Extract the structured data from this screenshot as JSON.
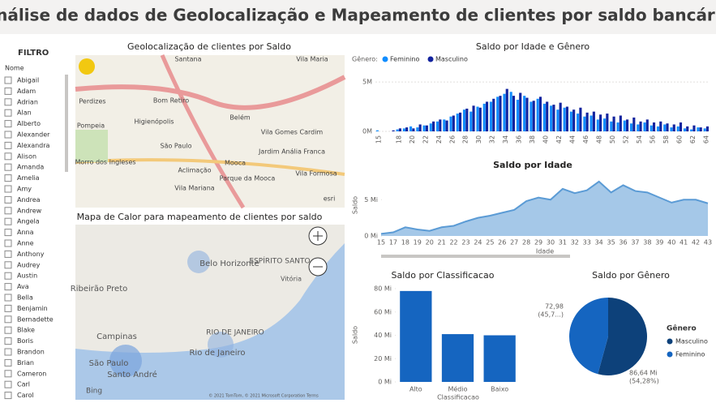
{
  "header": {
    "title": "Análise de dados de Geolocalização e Mapeamento de clientes por saldo bancário"
  },
  "filter": {
    "title": "FILTRO",
    "field": "Nome",
    "items": [
      "Abigail",
      "Adam",
      "Adrian",
      "Alan",
      "Alberto",
      "Alexander",
      "Alexandra",
      "Alison",
      "Amanda",
      "Amelia",
      "Amy",
      "Andrea",
      "Andrew",
      "Angela",
      "Anna",
      "Anne",
      "Anthony",
      "Audrey",
      "Austin",
      "Ava",
      "Bella",
      "Benjamin",
      "Bernadette",
      "Blake",
      "Boris",
      "Brandon",
      "Brian",
      "Cameron",
      "Carl",
      "Carol"
    ]
  },
  "map_geo": {
    "title": "Geolocalização de clientes por Saldo",
    "labels": [
      "Santana",
      "Vila Maria",
      "Bom Retiro",
      "Belém",
      "Perdizes",
      "Higienópolis",
      "Pompeia",
      "São Paulo",
      "Mooca",
      "Vila Gomes Cardim",
      "Jardim Anália Franca",
      "Morro dos Ingleses",
      "Aclimação",
      "Parque da Mooca",
      "Vila Formosa",
      "Vila Mariana",
      "esri"
    ]
  },
  "map_heat": {
    "title": "Mapa de Calor para mapeamento de clientes por saldo",
    "labels": [
      "Belo Horizonte",
      "ESPÍRITO SANTO",
      "Vitória",
      "Ribeirão Preto",
      "Campinas",
      "RIO DE JANEIRO",
      "Rio de Janeiro",
      "São Paulo",
      "Santo André",
      "Bing",
      "© 2021 TomTom, © 2021 Microsoft Corporation Terms"
    ]
  },
  "chart_data": [
    {
      "type": "grouped-bar",
      "title": "Saldo por Idade e Gênero",
      "legend_title": "Gênero:",
      "categories": [
        "15",
        null,
        null,
        "18",
        null,
        "20",
        null,
        "22",
        null,
        "24",
        null,
        "26",
        null,
        "28",
        null,
        "30",
        null,
        "32",
        null,
        "34",
        null,
        "36",
        null,
        "38",
        null,
        "40",
        null,
        "42",
        null,
        "44",
        null,
        "46",
        null,
        "48",
        null,
        "50",
        null,
        "52",
        null,
        "54",
        null,
        "56",
        null,
        "58",
        null,
        "60",
        null,
        "62",
        null,
        "64"
      ],
      "series": [
        {
          "name": "Feminino",
          "color": "#118dff",
          "values": [
            0.1,
            0,
            0,
            0.2,
            0.3,
            0.5,
            0.4,
            0.6,
            0.8,
            1.0,
            1.2,
            1.5,
            1.8,
            2.2,
            2.0,
            2.5,
            2.8,
            3.0,
            3.5,
            3.8,
            4.0,
            3.2,
            3.6,
            3.0,
            3.3,
            2.8,
            2.6,
            2.2,
            2.4,
            2.0,
            1.8,
            1.5,
            1.6,
            1.2,
            1.3,
            1.0,
            0.9,
            1.1,
            0.8,
            0.7,
            0.9,
            0.6,
            0.5,
            0.7,
            0.4,
            0.5,
            0.3,
            0.2,
            0.4,
            0.3
          ]
        },
        {
          "name": "Masculino",
          "color": "#12239e",
          "values": [
            0,
            0,
            0.1,
            0.3,
            0.4,
            0.3,
            0.7,
            0.6,
            1.0,
            1.2,
            1.1,
            1.6,
            1.9,
            2.3,
            2.6,
            2.4,
            3.0,
            3.3,
            3.6,
            4.3,
            3.6,
            3.9,
            3.4,
            3.1,
            3.5,
            3.0,
            2.7,
            2.9,
            2.5,
            2.2,
            2.4,
            1.9,
            2.0,
            1.7,
            1.8,
            1.5,
            1.6,
            1.2,
            1.4,
            1.0,
            1.2,
            0.9,
            1.0,
            0.8,
            0.7,
            0.9,
            0.5,
            0.6,
            0.4,
            0.5
          ]
        }
      ],
      "ylim": [
        0,
        5.5
      ],
      "yticks": [
        {
          "value": 0,
          "label": "0M"
        },
        {
          "value": 5,
          "label": "5M"
        }
      ]
    },
    {
      "type": "area",
      "title": "Saldo por Idade",
      "x_label": "Idade",
      "y_label": "Saldo",
      "color": "#5b9bd5",
      "categories": [
        "15",
        "17",
        "18",
        "19",
        "20",
        "21",
        "22",
        "23",
        "24",
        "25",
        "26",
        "27",
        "28",
        "29",
        "30",
        "31",
        "32",
        "33",
        "34",
        "35",
        "36",
        "37",
        "38",
        "39",
        "40",
        "41",
        "42",
        "43"
      ],
      "values": [
        0.3,
        0.5,
        1.2,
        0.9,
        0.7,
        1.2,
        1.4,
        2.0,
        2.5,
        2.8,
        3.2,
        3.6,
        4.8,
        5.3,
        5.0,
        6.5,
        5.9,
        6.3,
        7.5,
        6.0,
        7.0,
        6.2,
        6.0,
        5.3,
        4.6,
        5.0,
        5.0,
        4.5
      ],
      "ylim": [
        0,
        8.5
      ],
      "yticks": [
        {
          "value": 0,
          "label": "0 Mi"
        },
        {
          "value": 5,
          "label": "5 Mi"
        }
      ]
    },
    {
      "type": "bar",
      "title": "Saldo por Classificacao",
      "x_label": "Classificacao",
      "y_label": "Saldo",
      "color": "#1565c0",
      "categories": [
        "Alto",
        "Médio",
        "Baixo"
      ],
      "values": [
        78,
        41,
        40
      ],
      "ylim": [
        0,
        80
      ],
      "yticks": [
        {
          "value": 0,
          "label": "0 Mi"
        },
        {
          "value": 20,
          "label": "20 Mi"
        },
        {
          "value": 40,
          "label": "40 Mi"
        },
        {
          "value": 60,
          "label": "60 Mi"
        },
        {
          "value": 80,
          "label": "80 Mi"
        }
      ]
    },
    {
      "type": "pie",
      "title": "Saldo por Gênero",
      "legend_title": "Gênero",
      "categories": [
        "Masculino",
        "Feminino"
      ],
      "values": [
        86.64,
        72.98
      ],
      "colors": [
        "#0d417a",
        "#1565c0"
      ],
      "value_labels": [
        "86,64 Mi",
        "72,98"
      ],
      "percent_labels": [
        "(54,28%)",
        "(45,7...)"
      ]
    }
  ]
}
